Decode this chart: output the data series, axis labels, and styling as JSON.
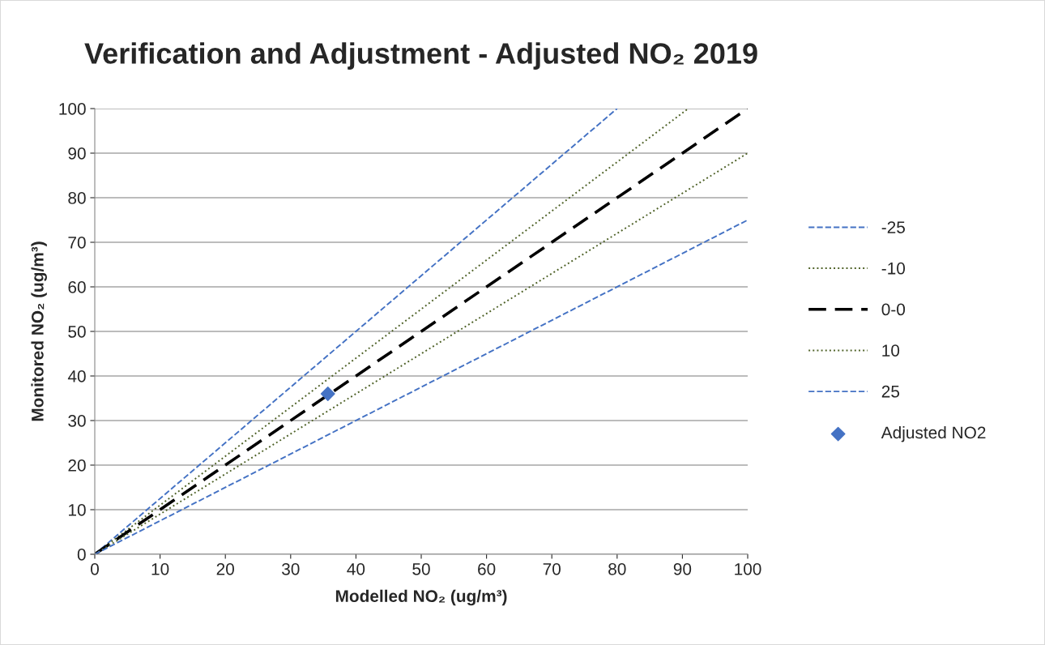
{
  "chart_data": {
    "type": "line",
    "title": "Verification and Adjustment - Adjusted NO₂ 2019",
    "xlabel": "Modelled NO₂ (ug/m³)",
    "ylabel": "Monitored NO₂ (ug/m³)",
    "xlim": [
      0,
      100
    ],
    "ylim": [
      0,
      100
    ],
    "xticks": [
      0,
      10,
      20,
      30,
      40,
      50,
      60,
      70,
      80,
      90,
      100
    ],
    "yticks": [
      0,
      10,
      20,
      30,
      40,
      50,
      60,
      70,
      80,
      90,
      100
    ],
    "grid": "y",
    "legend": "right",
    "series": [
      {
        "name": "-25",
        "color": "#4472c4",
        "line_style": "dashed",
        "marker": "none",
        "x": [
          0,
          80
        ],
        "values": [
          0,
          100
        ]
      },
      {
        "name": "-10",
        "color": "#4f6228",
        "line_style": "dotted",
        "marker": "none",
        "x": [
          0,
          90.9
        ],
        "values": [
          0,
          100
        ]
      },
      {
        "name": "0-0",
        "color": "#000000",
        "line_style": "dashed",
        "marker": "none",
        "x": [
          0,
          100
        ],
        "values": [
          0,
          100
        ]
      },
      {
        "name": "10",
        "color": "#4f6228",
        "line_style": "dotted",
        "marker": "none",
        "x": [
          0,
          100
        ],
        "values": [
          0,
          90
        ]
      },
      {
        "name": "25",
        "color": "#4472c4",
        "line_style": "dashed",
        "marker": "none",
        "x": [
          0,
          100
        ],
        "values": [
          0,
          75
        ]
      },
      {
        "name": "Adjusted NO2",
        "type": "scatter",
        "color": "#4472c4",
        "marker": "diamond",
        "x": [
          35.7
        ],
        "values": [
          36
        ]
      }
    ]
  }
}
